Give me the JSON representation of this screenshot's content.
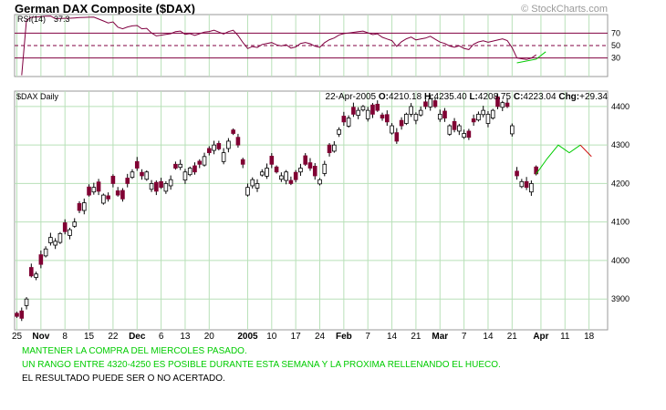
{
  "chart_data": {
    "type": "candlestick",
    "title": "German DAX Composite ($DAX)",
    "watermark": "© StockCharts.com",
    "rsi": {
      "label": "RSI(14)",
      "value": "37.3",
      "levels": [
        30,
        50,
        70
      ],
      "level_labels": [
        "70",
        "50",
        "30"
      ],
      "ylim": [
        0,
        100
      ],
      "line_color": "#800040"
    },
    "price": {
      "label": "$DAX Daily",
      "date": "22-Apr-2005",
      "open_label": "O:",
      "open": "4210.18",
      "high_label": "H:",
      "high": "4235.40",
      "low_label": "L:",
      "low": "4208.75",
      "close_label": "C:",
      "close": "4223.04",
      "change_label": "Chg:",
      "change": "+29.34",
      "ylim": [
        3820,
        4440
      ],
      "y_ticks": [
        "4400",
        "4300",
        "4200",
        "4100",
        "4000",
        "3900"
      ],
      "y_tick_values": [
        4400,
        4300,
        4200,
        4100,
        4000,
        3900
      ],
      "up_color": "#ffffff",
      "down_color": "#800033",
      "projection_color": "#00cc00",
      "projection_down_color": "#cc0000"
    },
    "x_ticks": [
      {
        "label": "25",
        "index": 0,
        "bold": false
      },
      {
        "label": "Nov",
        "index": 5,
        "bold": true
      },
      {
        "label": "8",
        "index": 10,
        "bold": false
      },
      {
        "label": "15",
        "index": 15,
        "bold": false
      },
      {
        "label": "22",
        "index": 20,
        "bold": false
      },
      {
        "label": "Dec",
        "index": 25,
        "bold": true
      },
      {
        "label": "6",
        "index": 30,
        "bold": false
      },
      {
        "label": "13",
        "index": 35,
        "bold": false
      },
      {
        "label": "20",
        "index": 40,
        "bold": false
      },
      {
        "label": "2005",
        "index": 48,
        "bold": true
      },
      {
        "label": "10",
        "index": 53,
        "bold": false
      },
      {
        "label": "17",
        "index": 58,
        "bold": false
      },
      {
        "label": "24",
        "index": 63,
        "bold": false
      },
      {
        "label": "Feb",
        "index": 68,
        "bold": true
      },
      {
        "label": "7",
        "index": 73,
        "bold": false
      },
      {
        "label": "14",
        "index": 78,
        "bold": false
      },
      {
        "label": "21",
        "index": 83,
        "bold": false
      },
      {
        "label": "Mar",
        "index": 88,
        "bold": true
      },
      {
        "label": "7",
        "index": 93,
        "bold": false
      },
      {
        "label": "14",
        "index": 98,
        "bold": false
      },
      {
        "label": "21",
        "index": 103,
        "bold": false
      },
      {
        "label": "Apr",
        "index": 109,
        "bold": true
      },
      {
        "label": "11",
        "index": 114,
        "bold": false
      },
      {
        "label": "18",
        "index": 119,
        "bold": false
      }
    ],
    "closes": [
      3855,
      3850,
      3900,
      3960,
      3965,
      3990,
      4030,
      4060,
      4050,
      4070,
      4075,
      4080,
      4100,
      4130,
      4150,
      4170,
      4190,
      4180,
      4170,
      4160,
      4200,
      4170,
      4160,
      4200,
      4230,
      4240,
      4220,
      4230,
      4200,
      4180,
      4190,
      4200,
      4210,
      4240,
      4250,
      4230,
      4240,
      4230,
      4250,
      4270,
      4280,
      4300,
      4290,
      4280,
      4310,
      4330,
      4300,
      4250,
      4190,
      4210,
      4200,
      4230,
      4240,
      4250,
      4230,
      4220,
      4230,
      4200,
      4210,
      4240,
      4250,
      4240,
      4220,
      4210,
      4250,
      4280,
      4300,
      4340,
      4360,
      4370,
      4380,
      4390,
      4400,
      4390,
      4380,
      4390,
      4370,
      4360,
      4350,
      4310,
      4350,
      4380,
      4400,
      4380,
      4390,
      4400,
      4420,
      4400,
      4380,
      4370,
      4350,
      4340,
      4350,
      4330,
      4320,
      4360,
      4380,
      4390,
      4380,
      4390,
      4400,
      4410,
      4400,
      4350,
      4220,
      4205,
      4190,
      4200,
      4225
    ],
    "projection": [
      4225,
      4265,
      4300,
      4280,
      4300,
      4270
    ],
    "annotations": [
      "MANTENER LA COMPRA DEL MIERCOLES PASADO.",
      "UN RANGO ENTRE 4320-4250 ES POSIBLE DURANTE ESTA SEMANA Y LA PROXIMA RELLENANDO EL HUECO.",
      "EL RESULTADO PUEDE SER O NO ACERTADO."
    ],
    "annotation_colors": [
      "#00cc00",
      "#00cc00",
      "#000000"
    ]
  }
}
